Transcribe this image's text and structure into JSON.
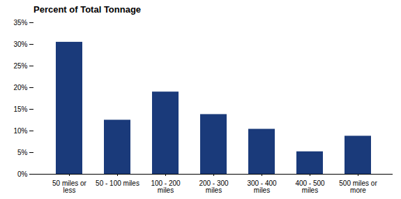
{
  "chart_data": {
    "type": "bar",
    "title": "Percent of Total Tonnage",
    "categories": [
      "50 miles or\nless",
      "50 - 100 miles",
      "100 - 200\nmiles",
      "200 - 300\nmiles",
      "300 - 400\nmiles",
      "400 - 500\nmiles",
      "500 miles or\nmore"
    ],
    "values": [
      30.5,
      12.5,
      19.0,
      13.8,
      10.4,
      5.2,
      8.8
    ],
    "color": "#1a3a7a",
    "ylim": [
      0,
      35
    ],
    "yticks": [
      {
        "value": 0,
        "label": "0%"
      },
      {
        "value": 5,
        "label": "5%"
      },
      {
        "value": 10,
        "label": "10%"
      },
      {
        "value": 15,
        "label": "15%"
      },
      {
        "value": 20,
        "label": "20%"
      },
      {
        "value": 25,
        "label": "25%"
      },
      {
        "value": 30,
        "label": "30%"
      },
      {
        "value": 35,
        "label": "35%"
      }
    ],
    "grid": false
  }
}
